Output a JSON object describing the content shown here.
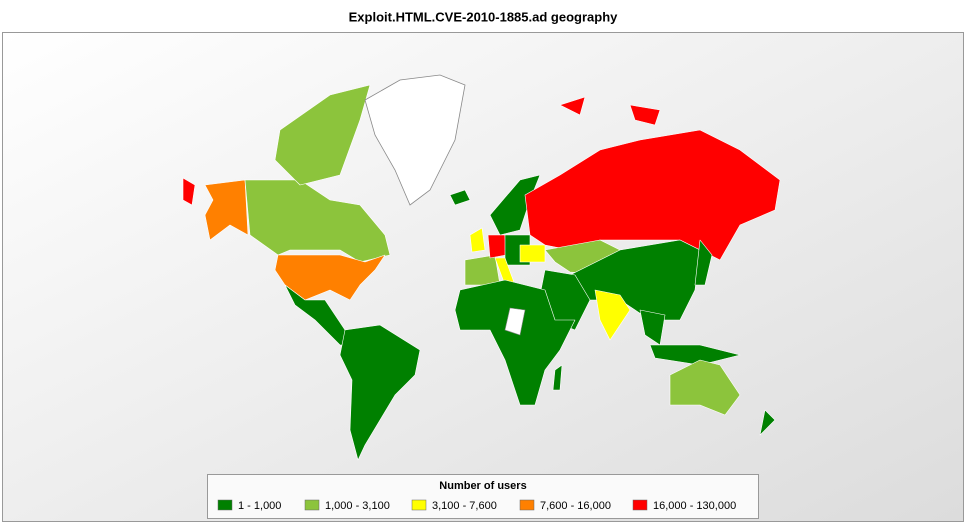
{
  "title": "Exploit.HTML.CVE-2010-1885.ad  geography",
  "legend": {
    "title": "Number of users",
    "items": [
      {
        "label": "1 - 1,000",
        "color": "#008000"
      },
      {
        "label": "1,000 - 3,100",
        "color": "#8cc43c"
      },
      {
        "label": "3,100 - 7,600",
        "color": "#ffff00"
      },
      {
        "label": "7,600 - 16,000",
        "color": "#ff8000"
      },
      {
        "label": "16,000 - 130,000",
        "color": "#ff0000"
      }
    ]
  }
}
